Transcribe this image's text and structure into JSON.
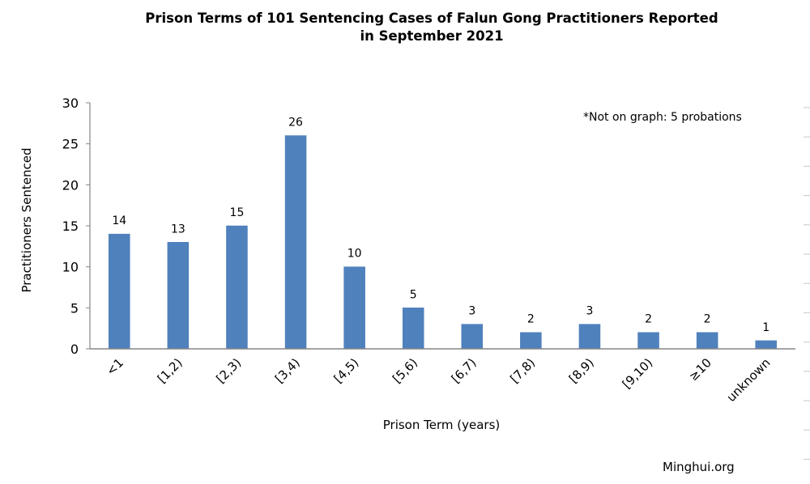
{
  "chart_data": {
    "type": "bar",
    "title_line1": "Prison Terms of 101 Sentencing Cases of Falun Gong Practitioners Reported",
    "title_line2": "in September 2021",
    "xlabel": "Prison Term (years)",
    "ylabel": "Practitioners Sentenced",
    "categories": [
      "<1",
      "[1,2)",
      "[2,3)",
      "[3,4)",
      "[4,5)",
      "[5,6)",
      "[6,7)",
      "[7,8)",
      "[8,9)",
      "[9,10)",
      "≥10",
      "unknown"
    ],
    "values": [
      14,
      13,
      15,
      26,
      10,
      5,
      3,
      2,
      3,
      2,
      2,
      1
    ],
    "ylim": [
      0,
      30
    ],
    "yticks": [
      0,
      5,
      10,
      15,
      20,
      25,
      30
    ],
    "grid": false,
    "annotation": "*Not on graph: 5 probations",
    "bar_color": "#4f81bd"
  },
  "footer": {
    "source": "Minghui.org"
  }
}
